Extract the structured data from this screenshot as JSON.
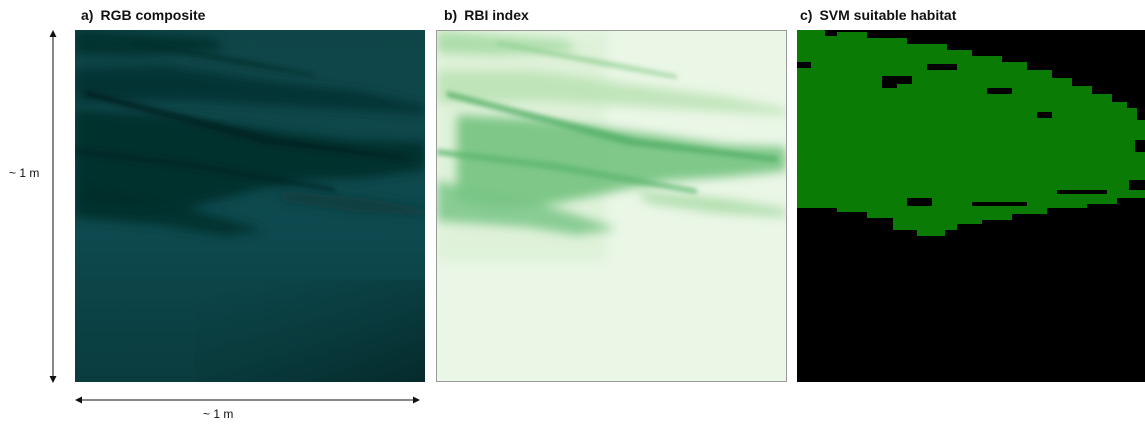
{
  "panels": [
    {
      "letter": "a)",
      "title": "RGB composite",
      "image": "underwater RGB photograph of seagrass over sand, dark teal tones"
    },
    {
      "letter": "b)",
      "title": "RBI index",
      "image": "RBI index map in light-to-dark green shades"
    },
    {
      "letter": "c)",
      "title": "SVM suitable habitat",
      "image": "binary classification map, green = suitable habitat, black = not suitable"
    }
  ],
  "scale": {
    "vertical_label": "~ 1 m",
    "horizontal_label": "~ 1 m"
  },
  "colors": {
    "rgb_background": "#0d4a4e",
    "rgb_dark": "#06302e",
    "rbi_background": "#eaf6e6",
    "rbi_feature": "#5cb46d",
    "svm_suitable": "#0a7c06",
    "svm_unsuitable": "#000000",
    "arrow": "#111111"
  }
}
